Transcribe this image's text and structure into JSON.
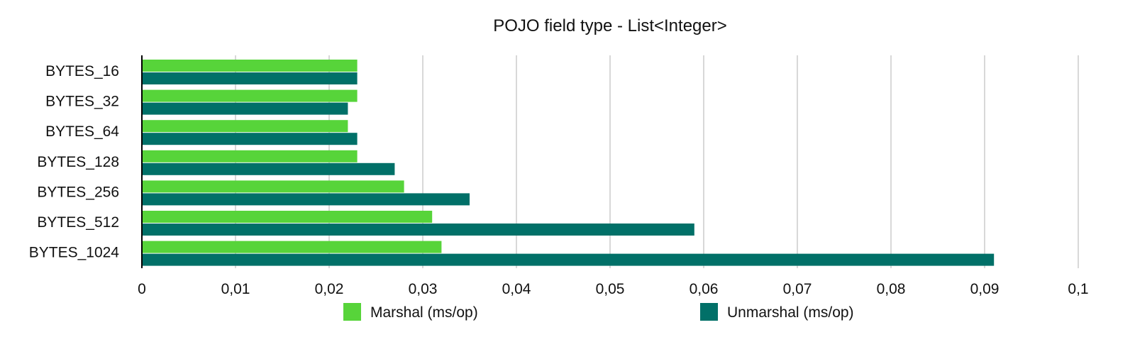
{
  "chart_data": {
    "type": "bar",
    "orientation": "horizontal",
    "title": "POJO field type - List<Integer>",
    "xlabel": "",
    "ylabel": "",
    "categories": [
      "BYTES_16",
      "BYTES_32",
      "BYTES_64",
      "BYTES_128",
      "BYTES_256",
      "BYTES_512",
      "BYTES_1024"
    ],
    "series": [
      {
        "name": "Marshal (ms/op)",
        "color": "#57d43a",
        "values": [
          0.023,
          0.023,
          0.022,
          0.023,
          0.028,
          0.031,
          0.032
        ]
      },
      {
        "name": "Unmarshal (ms/op)",
        "color": "#017068",
        "values": [
          0.023,
          0.022,
          0.023,
          0.027,
          0.035,
          0.059,
          0.091
        ]
      }
    ],
    "xlim": [
      0,
      0.1
    ],
    "xticks": [
      "0",
      "0,01",
      "0,02",
      "0,03",
      "0,04",
      "0,05",
      "0,06",
      "0,07",
      "0,08",
      "0,09",
      "0,1"
    ],
    "grid": "vertical",
    "legend_position": "bottom"
  }
}
